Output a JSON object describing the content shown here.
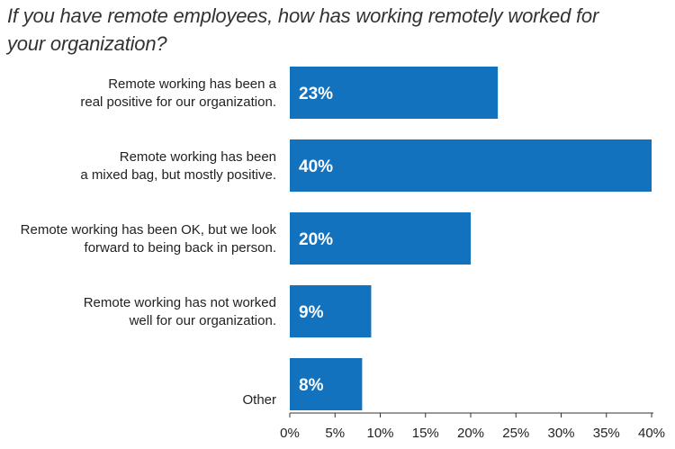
{
  "chart_data": {
    "type": "bar",
    "orientation": "horizontal",
    "title_lines": [
      "If you have remote employees, how has working remotely worked for",
      "your organization?"
    ],
    "categories": [
      [
        "Remote working has been a",
        "real positive for our organization."
      ],
      [
        "Remote working has been",
        "a mixed bag, but mostly positive."
      ],
      [
        "Remote working has been OK, but we look",
        "forward to being back in person."
      ],
      [
        "Remote working has not worked",
        "well for our organization."
      ],
      [
        "Other"
      ]
    ],
    "values": [
      23,
      40,
      20,
      9,
      8
    ],
    "value_labels": [
      "23%",
      "40%",
      "20%",
      "9%",
      "8%"
    ],
    "x_ticks": [
      "0%",
      "5%",
      "10%",
      "15%",
      "20%",
      "25%",
      "30%",
      "35%",
      "40%"
    ],
    "xlim": [
      0,
      40
    ],
    "bar_color": "#1372bd",
    "grid": false
  }
}
